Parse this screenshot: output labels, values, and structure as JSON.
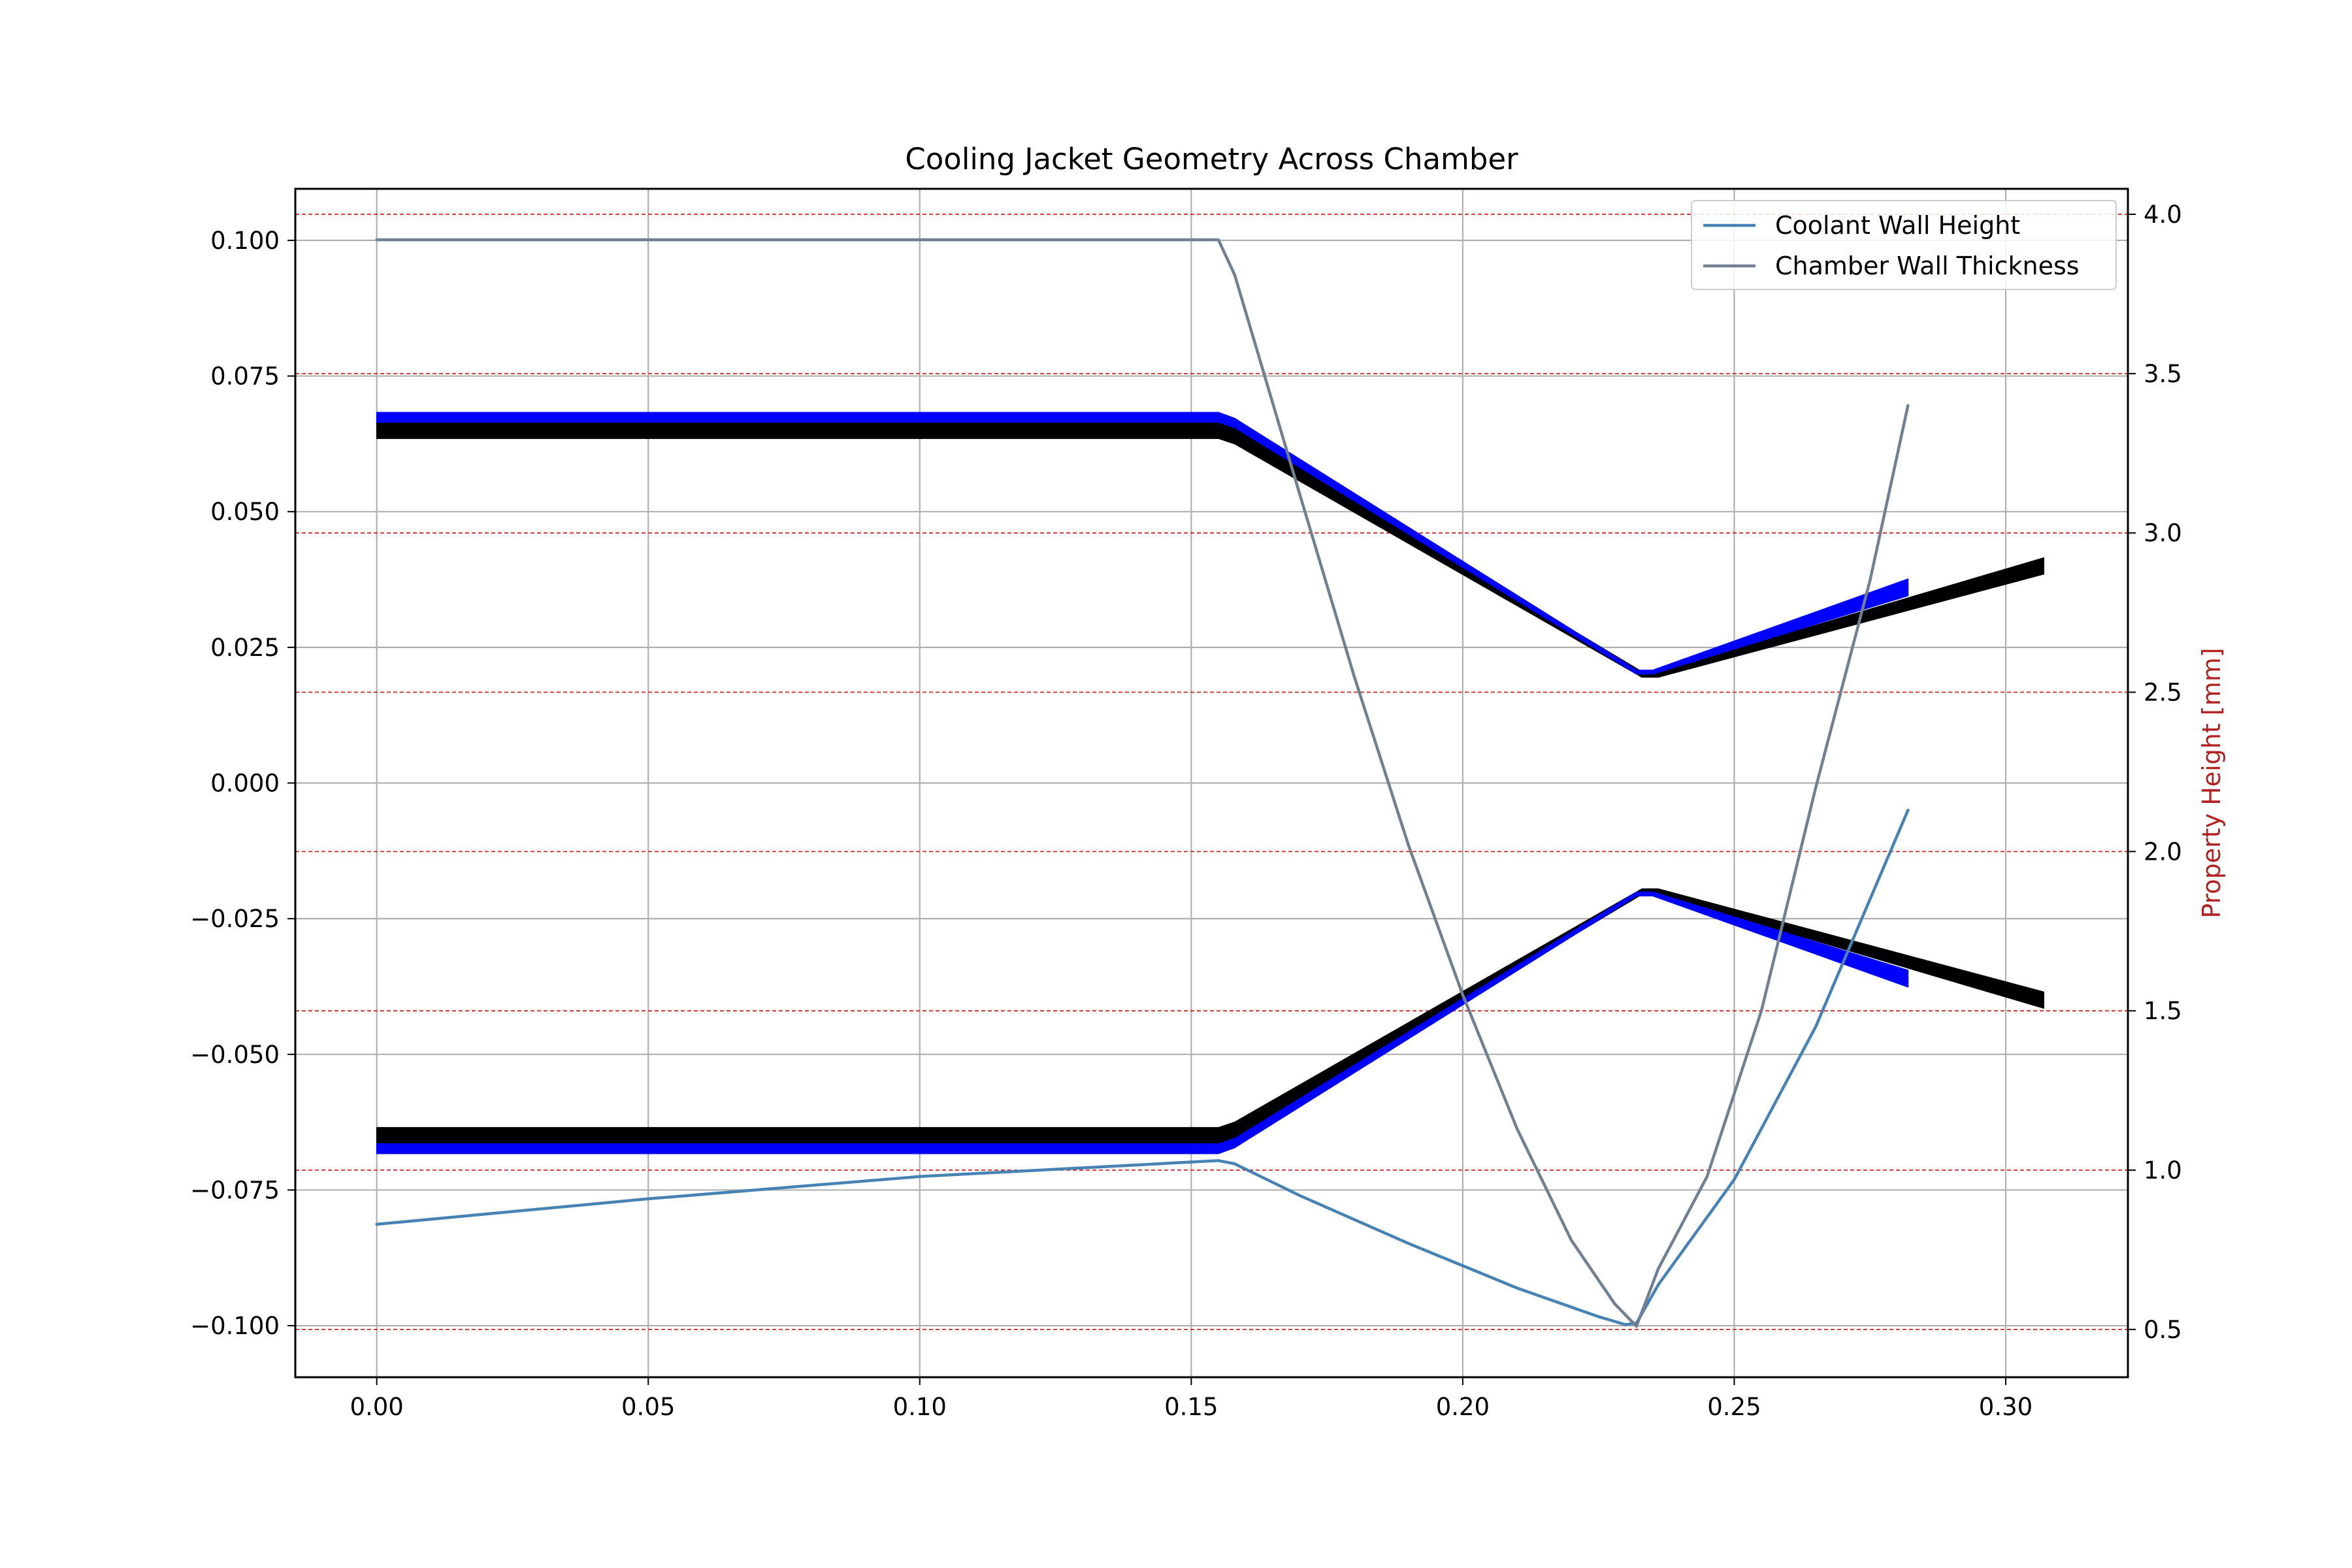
{
  "chart_data": {
    "type": "line",
    "title": "Cooling Jacket Geometry Across Chamber",
    "xlabel": "",
    "ylabel_left": "",
    "ylabel_right": "Property Height [mm]",
    "xlim": [
      -0.015,
      0.3225
    ],
    "ylim_left": [
      -0.1095,
      0.1095
    ],
    "ylim_right": [
      0.35,
      4.08
    ],
    "x_ticks": [
      "0.00",
      "0.05",
      "0.10",
      "0.15",
      "0.20",
      "0.25",
      "0.30"
    ],
    "y_left_ticks": [
      "−0.100",
      "−0.075",
      "−0.050",
      "−0.025",
      "0.000",
      "0.025",
      "0.050",
      "0.075",
      "0.100"
    ],
    "y_right_ticks": [
      "0.5",
      "1.0",
      "1.5",
      "2.0",
      "2.5",
      "3.0",
      "3.5",
      "4.0"
    ],
    "grid": true,
    "legend_position": "top-right",
    "colors": {
      "coolant_wall_height": "#4682b4",
      "chamber_wall_thickness": "#708090",
      "chamber_wall": "#000000",
      "coolant_channel": "#0000ff",
      "right_grid": "#cd2626",
      "right_label": "#b22222"
    },
    "series": [
      {
        "name": "Coolant Wall Height",
        "axis": "right",
        "x": [
          0.0,
          0.05,
          0.1,
          0.155,
          0.158,
          0.17,
          0.19,
          0.21,
          0.225,
          0.23,
          0.232,
          0.236,
          0.25,
          0.265,
          0.282
        ],
        "y": [
          0.83,
          0.91,
          0.98,
          1.03,
          1.02,
          0.92,
          0.77,
          0.63,
          0.54,
          0.515,
          0.52,
          0.64,
          0.97,
          1.45,
          2.13
        ]
      },
      {
        "name": "Chamber Wall Thickness",
        "axis": "right",
        "x": [
          0.0,
          0.155,
          0.158,
          0.17,
          0.18,
          0.19,
          0.2,
          0.21,
          0.22,
          0.228,
          0.232,
          0.236,
          0.245,
          0.255,
          0.265,
          0.275,
          0.282
        ],
        "y": [
          3.92,
          3.92,
          3.81,
          3.12,
          2.55,
          2.02,
          1.55,
          1.13,
          0.78,
          0.58,
          0.51,
          0.69,
          0.98,
          1.5,
          2.2,
          2.85,
          3.4
        ]
      }
    ],
    "geometry": {
      "chamber_wall_upper": {
        "x": [
          0.0,
          0.155,
          0.158,
          0.233,
          0.236,
          0.307
        ],
        "y_outer": [
          0.0665,
          0.0665,
          0.0655,
          0.0205,
          0.0205,
          0.0415
        ],
        "y_inner": [
          0.0635,
          0.0635,
          0.0625,
          0.0195,
          0.0195,
          0.0385
        ]
      },
      "chamber_wall_lower": {
        "x": [
          0.0,
          0.155,
          0.158,
          0.233,
          0.236,
          0.307
        ],
        "y_outer": [
          -0.0635,
          -0.0635,
          -0.0625,
          -0.0195,
          -0.0195,
          -0.0385
        ],
        "y_inner": [
          -0.0665,
          -0.0665,
          -0.0655,
          -0.0205,
          -0.0205,
          -0.0415
        ]
      },
      "coolant_channel_upper": {
        "x": [
          0.0,
          0.155,
          0.158,
          0.232,
          0.235,
          0.282
        ],
        "y_outer": [
          0.0683,
          0.0683,
          0.0672,
          0.0208,
          0.0208,
          0.0376
        ],
        "y_inner": [
          0.0665,
          0.0665,
          0.0655,
          0.0201,
          0.0201,
          0.0345
        ]
      },
      "coolant_channel_lower": {
        "x": [
          0.0,
          0.155,
          0.158,
          0.232,
          0.235,
          0.282
        ],
        "y_outer": [
          -0.0665,
          -0.0665,
          -0.0655,
          -0.0201,
          -0.0201,
          -0.0345
        ],
        "y_inner": [
          -0.0683,
          -0.0683,
          -0.0672,
          -0.0208,
          -0.0208,
          -0.0376
        ]
      }
    }
  }
}
